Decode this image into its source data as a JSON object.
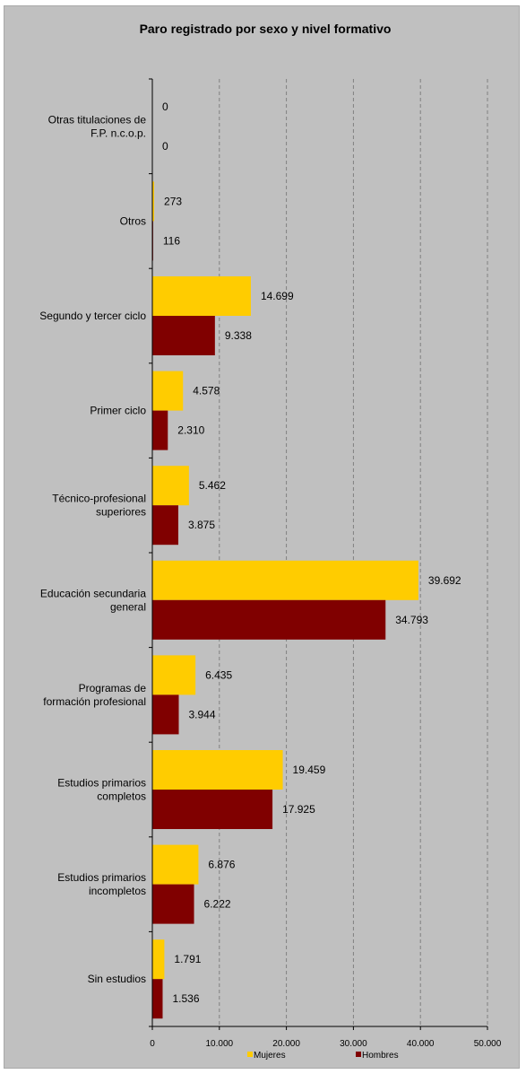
{
  "chart_data": {
    "type": "bar",
    "orientation": "horizontal",
    "title": "Paro registrado por sexo y nivel formativo",
    "xlabel": "",
    "ylabel": "",
    "xlim": [
      0,
      50000
    ],
    "ticks": [
      0,
      10000,
      20000,
      30000,
      40000,
      50000
    ],
    "tick_labels": [
      "0",
      "10.000",
      "20.000",
      "30.000",
      "40.000",
      "50.000"
    ],
    "grid": "vertical-dashed",
    "legend_position": "bottom",
    "categories": [
      [
        "Otras titulaciones de",
        "F.P. n.c.o.p."
      ],
      [
        "Otros"
      ],
      [
        "Segundo y tercer ciclo"
      ],
      [
        "Primer ciclo"
      ],
      [
        "Técnico-profesional",
        "superiores"
      ],
      [
        "Educación secundaria",
        "general"
      ],
      [
        "Programas de",
        "formación profesional"
      ],
      [
        "Estudios primarios",
        "completos"
      ],
      [
        "Estudios primarios",
        "incompletos"
      ],
      [
        "Sin estudios"
      ]
    ],
    "series": [
      {
        "name": "Mujeres",
        "color": "#ffcc00",
        "values": [
          0,
          273,
          14699,
          4578,
          5462,
          39692,
          6435,
          19459,
          6876,
          1791
        ],
        "labels": [
          "0",
          "273",
          "14.699",
          "4.578",
          "5.462",
          "39.692",
          "6.435",
          "19.459",
          "6.876",
          "1.791"
        ]
      },
      {
        "name": "Hombres",
        "color": "#800000",
        "values": [
          0,
          116,
          9338,
          2310,
          3875,
          34793,
          3944,
          17925,
          6222,
          1536
        ],
        "labels": [
          "0",
          "116",
          "9.338",
          "2.310",
          "3.875",
          "34.793",
          "3.944",
          "17.925",
          "6.222",
          "1.536"
        ]
      }
    ]
  },
  "colors": {
    "background": "#c0c0c0",
    "mujeres": "#ffcc00",
    "hombres": "#800000",
    "grid": "#808080"
  }
}
